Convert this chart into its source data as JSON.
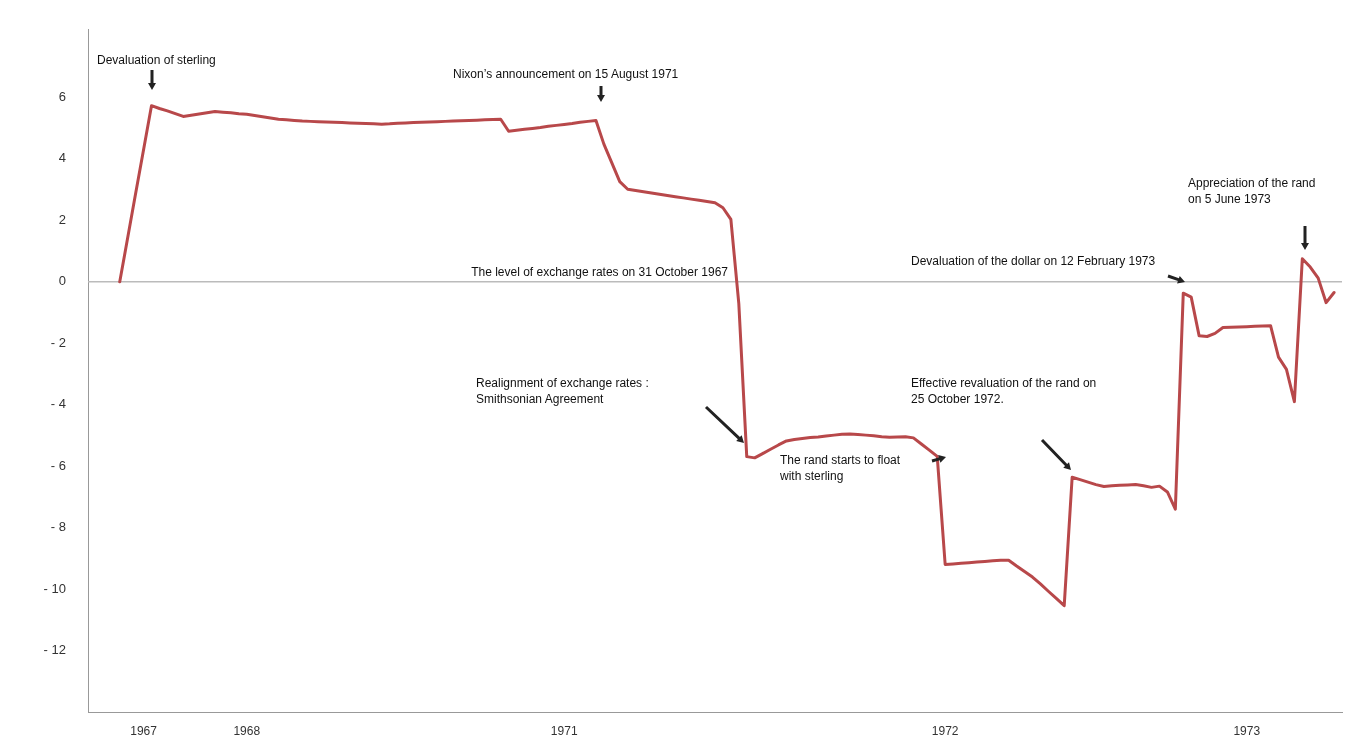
{
  "chart_data": {
    "type": "line",
    "categories": [
      null,
      null,
      null,
      null,
      null,
      null,
      null,
      "1967",
      null,
      null,
      null,
      null,
      null,
      null,
      null,
      null,
      null,
      null,
      null,
      null,
      "1968",
      null,
      null,
      null,
      null,
      null,
      null,
      null,
      null,
      null,
      null,
      null,
      null,
      null,
      null,
      null,
      null,
      null,
      null,
      null,
      null,
      null,
      null,
      null,
      null,
      null,
      null,
      null,
      null,
      null,
      null,
      null,
      null,
      null,
      null,
      null,
      null,
      null,
      null,
      null,
      "1971",
      null,
      null,
      null,
      null,
      null,
      null,
      null,
      null,
      null,
      null,
      null,
      null,
      null,
      null,
      null,
      null,
      null,
      null,
      null,
      null,
      null,
      null,
      null,
      null,
      null,
      null,
      null,
      null,
      null,
      null,
      null,
      null,
      null,
      null,
      null,
      null,
      null,
      null,
      null,
      null,
      null,
      null,
      null,
      null,
      null,
      null,
      null,
      "1972",
      null,
      null,
      null,
      null,
      null,
      null,
      null,
      null,
      null,
      null,
      null,
      null,
      null,
      null,
      null,
      null,
      null,
      null,
      null,
      null,
      null,
      null,
      null,
      null,
      null,
      null,
      null,
      null,
      null,
      null,
      null,
      null,
      null,
      null,
      null,
      null,
      null,
      "1973",
      null,
      null,
      null,
      null,
      null,
      null,
      null,
      null,
      null,
      null,
      null,
      null
    ],
    "series": [
      {
        "color": "#b8484a",
        "values": [
          null,
          null,
          null,
          null,
          0,
          1.43,
          2.87,
          4.3,
          5.73,
          5.64,
          5.56,
          5.47,
          5.38,
          5.42,
          5.46,
          5.5,
          5.54,
          5.52,
          5.5,
          5.47,
          5.45,
          5.41,
          5.37,
          5.33,
          5.29,
          5.27,
          5.25,
          5.23,
          5.22,
          5.21,
          5.2,
          5.19,
          5.18,
          5.17,
          5.16,
          5.15,
          5.14,
          5.13,
          5.14,
          5.16,
          5.17,
          5.18,
          5.19,
          5.2,
          5.21,
          5.22,
          5.23,
          5.24,
          5.25,
          5.26,
          5.27,
          5.28,
          5.29,
          4.9,
          4.93,
          4.96,
          4.99,
          5.02,
          5.06,
          5.09,
          5.12,
          5.15,
          5.19,
          5.22,
          5.25,
          4.48,
          3.87,
          3.26,
          3.01,
          2.97,
          2.93,
          2.89,
          2.85,
          2.81,
          2.77,
          2.73,
          2.69,
          2.65,
          2.61,
          2.57,
          2.41,
          2.03,
          -0.71,
          -5.69,
          -5.73,
          -5.59,
          -5.45,
          -5.31,
          -5.18,
          -5.13,
          -5.1,
          -5.07,
          -5.05,
          -5.02,
          -4.99,
          -4.96,
          -4.95,
          -4.97,
          -4.99,
          -5.01,
          -5.04,
          -5.06,
          -5.05,
          -5.04,
          -5.08,
          -5.28,
          -5.48,
          -5.68,
          -9.2,
          -9.18,
          -9.16,
          -9.14,
          -9.12,
          -9.1,
          -9.08,
          -9.06,
          -9.06,
          -9.25,
          -9.43,
          -9.61,
          -9.83,
          -10.07,
          -10.3,
          -10.54,
          -6.36,
          -6.44,
          -6.52,
          -6.6,
          -6.66,
          -6.64,
          -6.62,
          -6.61,
          -6.6,
          -6.64,
          -6.69,
          -6.65,
          -6.84,
          -7.4,
          -0.37,
          -0.5,
          -1.76,
          -1.78,
          -1.68,
          -1.49,
          -1.48,
          -1.47,
          -1.46,
          -1.45,
          -1.44,
          -1.43,
          -2.45,
          -2.85,
          -3.9,
          0.75,
          0.48,
          0.12,
          -0.68,
          -0.35,
          null
        ]
      }
    ],
    "ylim": [
      -14,
      8.2
    ],
    "yticks": [
      6,
      4,
      2,
      0,
      {
        "value": -2,
        "label": "- 2"
      },
      {
        "value": -4,
        "label": "- 4"
      },
      {
        "value": -6,
        "label": "- 6"
      },
      {
        "value": -8,
        "label": "- 8"
      },
      {
        "value": -10,
        "label": "- 10"
      },
      {
        "value": -12,
        "label": "- 12"
      }
    ],
    "grid": false,
    "legend": false,
    "marker": "none",
    "line_style": "solid",
    "ref_lines": [
      {
        "axis": "y",
        "value": 0,
        "label": "The level of exchange rates on 31 October 1967",
        "color": "#bbbbbb"
      }
    ],
    "annotations": [
      "Devaluation of sterling",
      "Nixon’s announcement on 15 August 1971",
      "Realignment of exchange rates : Smithsonian Agreement",
      "The rand starts to float with sterling",
      "Effective revaluation of the rand on 25 October 1972.",
      "Devaluation of the dollar on 12 February 1973",
      "Appreciation of the rand on 5 June 1973"
    ]
  }
}
